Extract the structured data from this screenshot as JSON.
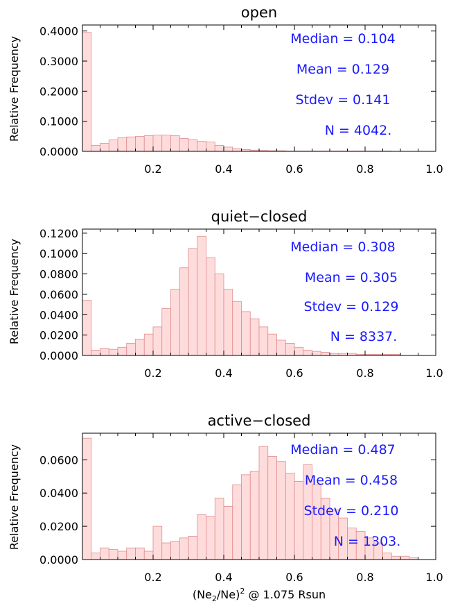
{
  "chart_data": [
    {
      "type": "bar",
      "title": "open",
      "ylabel": "Relative Frequency",
      "xlim": [
        0.0,
        1.0
      ],
      "ylim": [
        0.0,
        0.42
      ],
      "yticks": [
        0.0,
        0.1,
        0.2,
        0.3,
        0.4
      ],
      "ytick_labels": [
        "0.0000",
        "0.1000",
        "0.2000",
        "0.3000",
        "0.4000"
      ],
      "xticks": [
        0.2,
        0.4,
        0.6,
        0.8,
        1.0
      ],
      "xtick_labels": [
        "0.2",
        "0.4",
        "0.6",
        "0.8",
        "1.0"
      ],
      "bin_width": 0.025,
      "bin_start": 0.0,
      "values": [
        0.395,
        0.02,
        0.027,
        0.038,
        0.045,
        0.048,
        0.05,
        0.052,
        0.054,
        0.054,
        0.052,
        0.043,
        0.039,
        0.033,
        0.031,
        0.02,
        0.014,
        0.009,
        0.006,
        0.004,
        0.003,
        0.002,
        0.002,
        0.001,
        0.001,
        0.001,
        0.001,
        0.001,
        0.001,
        0.001,
        0.001,
        0.001,
        0.001,
        0.001,
        0.001,
        0.0,
        0.0,
        0.0,
        0.0,
        0.0
      ],
      "stats": [
        {
          "label": "Median",
          "value": "0.104",
          "text": "Median =  0.104"
        },
        {
          "label": "Mean",
          "value": "0.129",
          "text": "Mean = 0.129"
        },
        {
          "label": "Stdev",
          "value": "0.141",
          "text": "Stdev = 0.141"
        },
        {
          "label": "N",
          "value": "4042.",
          "text": "N = 4042."
        }
      ]
    },
    {
      "type": "bar",
      "title": "quiet−closed",
      "ylabel": "Relative Frequency",
      "xlim": [
        0.0,
        1.0
      ],
      "ylim": [
        0.0,
        0.124
      ],
      "yticks": [
        0.0,
        0.02,
        0.04,
        0.06,
        0.08,
        0.1,
        0.12
      ],
      "ytick_labels": [
        "0.0000",
        "0.0200",
        "0.0400",
        "0.0600",
        "0.0800",
        "0.1000",
        "0.1200"
      ],
      "xticks": [
        0.2,
        0.4,
        0.6,
        0.8,
        1.0
      ],
      "xtick_labels": [
        "0.2",
        "0.4",
        "0.6",
        "0.8",
        "1.0"
      ],
      "bin_width": 0.025,
      "bin_start": 0.0,
      "values": [
        0.054,
        0.005,
        0.007,
        0.006,
        0.008,
        0.012,
        0.016,
        0.021,
        0.028,
        0.046,
        0.065,
        0.086,
        0.105,
        0.117,
        0.096,
        0.08,
        0.065,
        0.053,
        0.043,
        0.036,
        0.028,
        0.021,
        0.015,
        0.012,
        0.008,
        0.005,
        0.004,
        0.003,
        0.002,
        0.002,
        0.002,
        0.001,
        0.001,
        0.001,
        0.001,
        0.001,
        0.0,
        0.0,
        0.0,
        0.0
      ],
      "stats": [
        {
          "label": "Median",
          "value": "0.308",
          "text": "Median =  0.308"
        },
        {
          "label": "Mean",
          "value": "0.305",
          "text": "Mean =  0.305"
        },
        {
          "label": "Stdev",
          "value": "0.129",
          "text": "Stdev =  0.129"
        },
        {
          "label": "N",
          "value": "8337.",
          "text": "N = 8337."
        }
      ]
    },
    {
      "type": "bar",
      "title": "active−closed",
      "ylabel": "Relative Frequency",
      "xlabel": "(Ne",
      "xlabel_sub": "2",
      "xlabel_mid": "/Ne)",
      "xlabel_sup": "2",
      "xlabel_tail": " @ 1.075 Rsun",
      "xlim": [
        0.0,
        1.0
      ],
      "ylim": [
        0.0,
        0.076
      ],
      "yticks": [
        0.0,
        0.02,
        0.04,
        0.06
      ],
      "ytick_labels": [
        "0.0000",
        "0.0200",
        "0.0400",
        "0.0600"
      ],
      "xticks": [
        0.2,
        0.4,
        0.6,
        0.8,
        1.0
      ],
      "xtick_labels": [
        "0.2",
        "0.4",
        "0.6",
        "0.8",
        "1.0"
      ],
      "bin_width": 0.025,
      "bin_start": 0.0,
      "values": [
        0.073,
        0.004,
        0.007,
        0.006,
        0.005,
        0.007,
        0.007,
        0.005,
        0.02,
        0.01,
        0.011,
        0.013,
        0.014,
        0.027,
        0.026,
        0.037,
        0.032,
        0.045,
        0.051,
        0.053,
        0.068,
        0.062,
        0.059,
        0.052,
        0.047,
        0.057,
        0.045,
        0.037,
        0.03,
        0.025,
        0.019,
        0.017,
        0.013,
        0.01,
        0.004,
        0.002,
        0.002,
        0.001,
        0.0,
        0.0
      ],
      "stats": [
        {
          "label": "Median",
          "value": "0.487",
          "text": "Median =  0.487"
        },
        {
          "label": "Mean",
          "value": "0.458",
          "text": "Mean =  0.458"
        },
        {
          "label": "Stdev",
          "value": "0.210",
          "text": "Stdev =  0.210"
        },
        {
          "label": "N",
          "value": "1303.",
          "text": "N = 1303."
        }
      ]
    }
  ],
  "colors": {
    "bar_fill": "#ffdcdc",
    "bar_stroke": "#e08a8a",
    "stat_text": "#1a1aff",
    "axis": "#000000"
  }
}
